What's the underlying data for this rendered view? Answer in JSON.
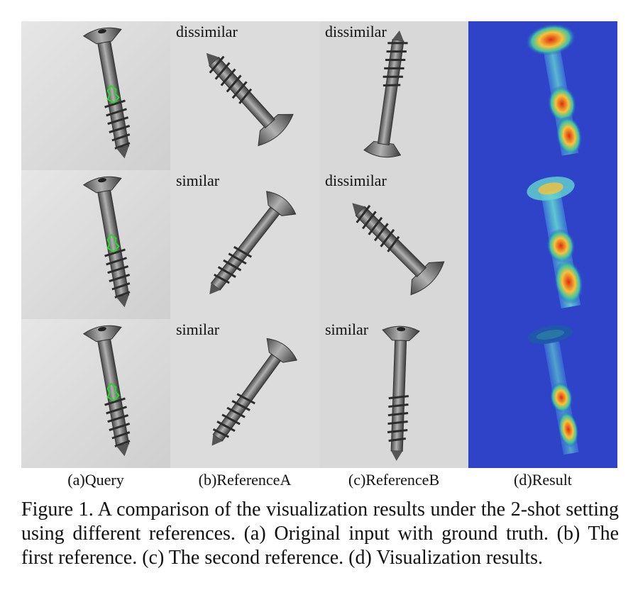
{
  "figure": {
    "rows": [
      {
        "query": {
          "image": "screw-query-with-ground-truth"
        },
        "reference_a": {
          "tag": "dissimilar",
          "image": "screw-reference"
        },
        "reference_b": {
          "tag": "dissimilar",
          "image": "screw-reference"
        },
        "result": {
          "image": "screw-heatmap"
        }
      },
      {
        "query": {
          "image": "screw-query-with-ground-truth"
        },
        "reference_a": {
          "tag": "similar",
          "image": "screw-reference"
        },
        "reference_b": {
          "tag": "dissimilar",
          "image": "screw-reference"
        },
        "result": {
          "image": "screw-heatmap"
        }
      },
      {
        "query": {
          "image": "screw-query-with-ground-truth"
        },
        "reference_a": {
          "tag": "similar",
          "image": "screw-reference"
        },
        "reference_b": {
          "tag": "similar",
          "image": "screw-reference"
        },
        "result": {
          "image": "screw-heatmap"
        }
      }
    ],
    "column_labels": [
      "(a)Query",
      "(b)ReferenceA",
      "(c)ReferenceB",
      "(d)Result"
    ],
    "colors": {
      "photo_background": "#d9d9d9",
      "screw_metal": "#6e6e6e",
      "ground_truth_outline": "#22dd22",
      "heatmap_background": "#2f43c8",
      "heatmap_hot": "#e02b10",
      "heatmap_warm": "#f5c33a"
    }
  },
  "caption": "Figure 1.  A comparison of the visualization results under the 2-shot setting using different references.  (a) Original input with ground truth.  (b) The first reference.  (c) The second reference.  (d) Visualization results."
}
